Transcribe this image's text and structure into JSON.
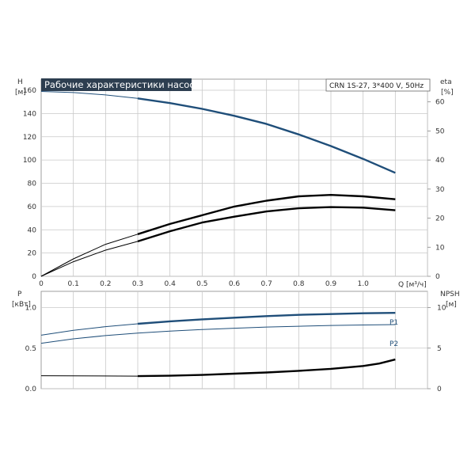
{
  "header": {
    "title": "Рабочие характеристики насоса",
    "model": "CRN 1S-27, 3*400 V, 50Hz"
  },
  "colors": {
    "blue": "#1f4e79",
    "black": "#000000",
    "grid": "#c8c8c8",
    "title_bg": "#2d3e50"
  },
  "chart_data": [
    {
      "type": "line",
      "xlabel": "Q [м³/ч]",
      "xlim": [
        0,
        1.1
      ],
      "xticks": [
        "0",
        "0.1",
        "0.2",
        "0.3",
        "0.4",
        "0.5",
        "0.6",
        "0.7",
        "0.8",
        "0.9",
        "1.0"
      ],
      "left_axis": {
        "label_line1": "H",
        "label_line2": "[м]",
        "ylim": [
          0,
          160
        ],
        "ticks": [
          "0",
          "20",
          "40",
          "60",
          "80",
          "100",
          "120",
          "140",
          "160"
        ]
      },
      "right_axis": {
        "label_line1": "eta",
        "label_line2": "[%]",
        "ylim": [
          0,
          64
        ],
        "ticks": [
          "0",
          "10",
          "20",
          "30",
          "40",
          "50",
          "60"
        ]
      },
      "series": [
        {
          "key": "H",
          "color": "#1f4e79",
          "axis": "left",
          "x": [
            0,
            0.1,
            0.2,
            0.3,
            0.4,
            0.5,
            0.6,
            0.7,
            0.8,
            0.9,
            1.0,
            1.1
          ],
          "y": [
            159,
            158,
            156,
            153,
            149,
            144,
            138,
            131,
            122,
            112,
            101,
            89
          ],
          "bold_from": 0.3
        },
        {
          "key": "eta-pump",
          "color": "#000000",
          "axis": "right",
          "x": [
            0,
            0.1,
            0.2,
            0.3,
            0.4,
            0.5,
            0.6,
            0.7,
            0.8,
            0.9,
            1.0,
            1.1
          ],
          "y": [
            0,
            6,
            11,
            14.5,
            18,
            21,
            24,
            26,
            27.5,
            28,
            27.5,
            26.5
          ],
          "bold_from": 0.3
        },
        {
          "key": "eta-total",
          "color": "#000000",
          "axis": "right",
          "x": [
            0,
            0.1,
            0.2,
            0.3,
            0.4,
            0.5,
            0.6,
            0.7,
            0.8,
            0.9,
            1.0,
            1.1
          ],
          "y": [
            0,
            5,
            9,
            12,
            15.5,
            18.5,
            20.5,
            22.3,
            23.4,
            23.8,
            23.6,
            22.7
          ],
          "bold_from": 0.3
        }
      ]
    },
    {
      "type": "line",
      "xlim": [
        0,
        1.1
      ],
      "left_axis": {
        "label_line1": "P",
        "label_line2": "[кВт]",
        "ylim": [
          0,
          1.2
        ],
        "ticks": [
          "0.0",
          "0.5",
          "1.0"
        ]
      },
      "right_axis": {
        "label_line1": "NPSH",
        "label_line2": "[м]",
        "ylim": [
          0,
          12
        ],
        "ticks": [
          "0",
          "5",
          "10"
        ]
      },
      "series": [
        {
          "key": "P1",
          "name": "P1",
          "color": "#1f4e79",
          "axis": "left",
          "x": [
            0,
            0.1,
            0.2,
            0.3,
            0.4,
            0.5,
            0.6,
            0.7,
            0.8,
            0.9,
            1.0,
            1.1
          ],
          "y": [
            0.66,
            0.72,
            0.765,
            0.8,
            0.83,
            0.855,
            0.875,
            0.895,
            0.91,
            0.92,
            0.93,
            0.935
          ],
          "bold_from": 0.3
        },
        {
          "key": "P2",
          "name": "P2",
          "color": "#1f4e79",
          "axis": "left",
          "x": [
            0,
            0.1,
            0.2,
            0.3,
            0.4,
            0.5,
            0.6,
            0.7,
            0.8,
            0.9,
            1.0,
            1.1
          ],
          "y": [
            0.56,
            0.615,
            0.655,
            0.685,
            0.71,
            0.73,
            0.745,
            0.76,
            0.77,
            0.78,
            0.785,
            0.79
          ],
          "bold_from": 99
        },
        {
          "key": "NPSH",
          "color": "#000000",
          "axis": "right",
          "x": [
            0,
            0.3,
            0.4,
            0.5,
            0.6,
            0.7,
            0.8,
            0.9,
            1.0,
            1.05,
            1.1
          ],
          "y": [
            1.6,
            1.55,
            1.6,
            1.7,
            1.85,
            2.0,
            2.2,
            2.45,
            2.8,
            3.1,
            3.6
          ],
          "bold_from": 0.3
        }
      ]
    }
  ]
}
